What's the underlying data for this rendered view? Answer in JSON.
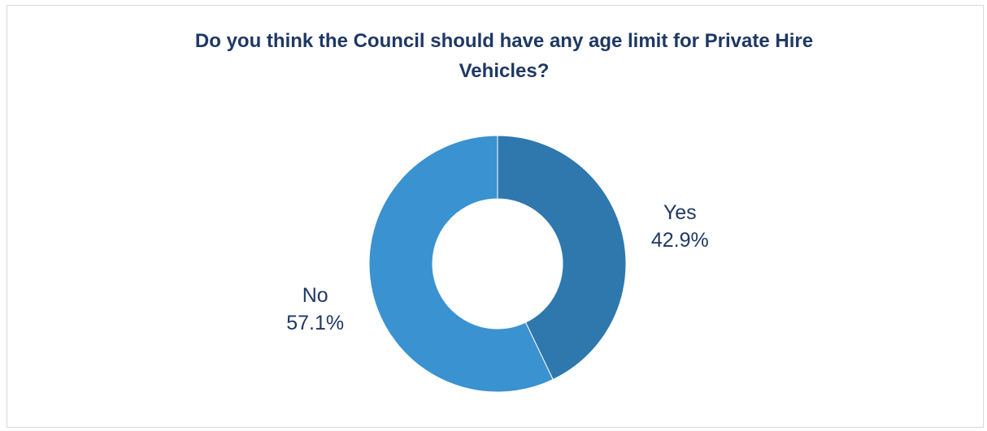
{
  "title_lines": [
    "Do you think the Council should have any age limit for Private Hire",
    "Vehicles?"
  ],
  "chart_data": {
    "type": "pie",
    "variant": "donut",
    "title": "Do you think the Council should have any age limit for Private Hire Vehicles?",
    "categories": [
      "Yes",
      "No"
    ],
    "values": [
      42.9,
      57.1
    ],
    "value_labels": [
      "42.9%",
      "57.1%"
    ],
    "colors": [
      "#2e78ad",
      "#3a92d0"
    ],
    "legend": "none"
  }
}
